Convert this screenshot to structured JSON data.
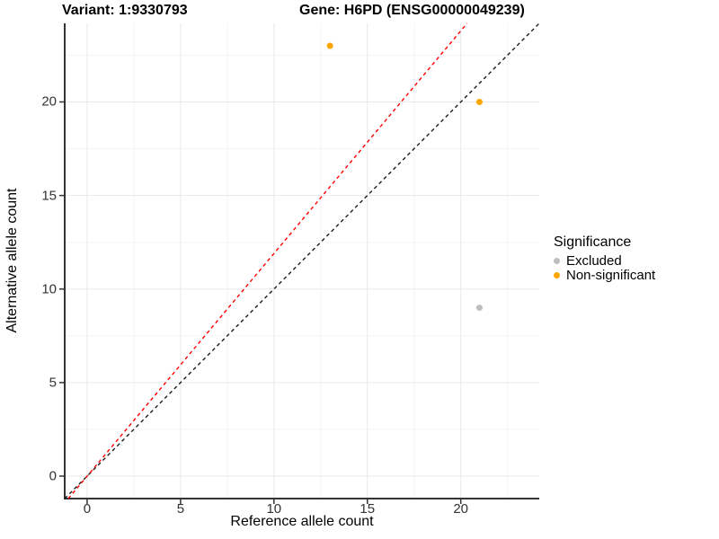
{
  "header": {
    "variant_title": "Variant: 1:9330793",
    "gene_title": "Gene: H6PD (ENSG00000049239)"
  },
  "chart_data": {
    "type": "scatter",
    "title": "Variant: 1:9330793   Gene: H6PD (ENSG00000049239)",
    "xlabel": "Reference allele count",
    "ylabel": "Alternative allele count",
    "xlim": [
      -1.2,
      24.2
    ],
    "ylim": [
      -1.2,
      24.2
    ],
    "x_ticks": [
      0,
      5,
      10,
      15,
      20
    ],
    "y_ticks": [
      0,
      5,
      10,
      15,
      20
    ],
    "minor_ticks": [
      2.5,
      7.5,
      12.5,
      17.5,
      22.5
    ],
    "grid": true,
    "series": [
      {
        "name": "Excluded",
        "color": "#BEBEBE",
        "points": [
          {
            "x": 21,
            "y": 9
          }
        ]
      },
      {
        "name": "Non-significant",
        "color": "#FFA500",
        "points": [
          {
            "x": 13,
            "y": 23
          },
          {
            "x": 21,
            "y": 20
          }
        ]
      }
    ],
    "lines": [
      {
        "name": "identity",
        "slope": 1.0,
        "intercept": 0,
        "color": "#1A1A1A",
        "style": "dashed"
      },
      {
        "name": "expected-ratio",
        "slope": 1.19,
        "intercept": 0,
        "color": "#FF0000",
        "style": "dashed"
      }
    ],
    "legend": {
      "title": "Significance",
      "position": "right",
      "entries": [
        {
          "label": "Excluded",
          "color": "#BEBEBE"
        },
        {
          "label": "Non-significant",
          "color": "#FFA500"
        }
      ]
    },
    "style": {
      "grid_major_color": "#E9E9E9",
      "grid_minor_color": "#F4F4F4",
      "axis_line_color": "#333333",
      "tick_color": "#333333",
      "background": "#FFFFFF"
    }
  }
}
